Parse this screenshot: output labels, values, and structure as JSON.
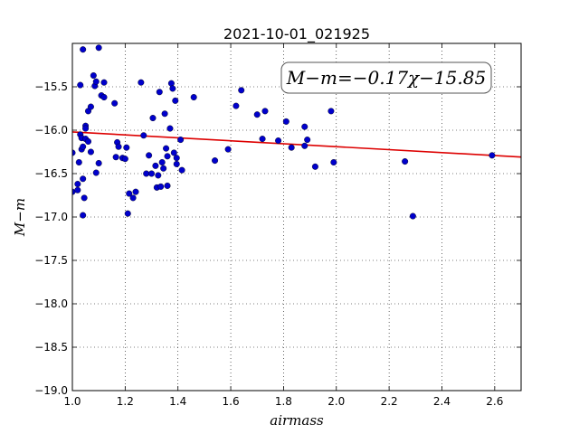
{
  "chart_data": {
    "type": "scatter",
    "title": "2021-10-01_021925",
    "xlabel": "airmass",
    "ylabel": "M−m",
    "xlim": [
      1.0,
      2.7
    ],
    "ylim": [
      -19.0,
      -15.0
    ],
    "x_ticks": [
      1.0,
      1.2,
      1.4,
      1.6,
      1.8,
      2.0,
      2.2,
      2.4,
      2.6
    ],
    "x_tick_labels": [
      "1.0",
      "1.2",
      "1.4",
      "1.6",
      "1.8",
      "2.0",
      "2.2",
      "2.4",
      "2.6"
    ],
    "y_ticks": [
      -15.5,
      -16.0,
      -16.5,
      -17.0,
      -17.5,
      -18.0,
      -18.5,
      -19.0
    ],
    "y_tick_labels": [
      "−15.5",
      "−16.0",
      "−16.5",
      "−17.0",
      "−17.5",
      "−18.0",
      "−18.5",
      "−19.0"
    ],
    "grid": true,
    "annotation": "M−m=−0.17χ−15.85",
    "fit": {
      "slope": -0.17,
      "intercept": -15.85,
      "color": "#dd0000"
    },
    "point_color": "#0000cc",
    "points": [
      [
        1.0,
        -16.26
      ],
      [
        1.0,
        -16.71
      ],
      [
        1.02,
        -16.62
      ],
      [
        1.02,
        -16.69
      ],
      [
        1.025,
        -16.37
      ],
      [
        1.03,
        -15.48
      ],
      [
        1.03,
        -16.05
      ],
      [
        1.035,
        -16.09
      ],
      [
        1.035,
        -16.22
      ],
      [
        1.04,
        -15.07
      ],
      [
        1.04,
        -16.98
      ],
      [
        1.04,
        -16.56
      ],
      [
        1.045,
        -16.78
      ],
      [
        1.04,
        -16.19
      ],
      [
        1.05,
        -16.1
      ],
      [
        1.05,
        -15.95
      ],
      [
        1.05,
        -15.98
      ],
      [
        1.06,
        -16.13
      ],
      [
        1.06,
        -15.78
      ],
      [
        1.07,
        -15.73
      ],
      [
        1.07,
        -16.25
      ],
      [
        1.08,
        -15.37
      ],
      [
        1.085,
        -15.49
      ],
      [
        1.09,
        -15.44
      ],
      [
        1.09,
        -16.49
      ],
      [
        1.1,
        -15.05
      ],
      [
        1.1,
        -16.38
      ],
      [
        1.11,
        -15.6
      ],
      [
        1.12,
        -15.62
      ],
      [
        1.12,
        -15.45
      ],
      [
        1.16,
        -15.69
      ],
      [
        1.165,
        -16.31
      ],
      [
        1.17,
        -16.14
      ],
      [
        1.175,
        -16.19
      ],
      [
        1.19,
        -16.32
      ],
      [
        1.2,
        -16.33
      ],
      [
        1.205,
        -16.2
      ],
      [
        1.21,
        -16.96
      ],
      [
        1.215,
        -16.73
      ],
      [
        1.23,
        -16.78
      ],
      [
        1.24,
        -16.71
      ],
      [
        1.26,
        -15.45
      ],
      [
        1.27,
        -16.06
      ],
      [
        1.28,
        -16.5
      ],
      [
        1.29,
        -16.29
      ],
      [
        1.3,
        -16.5
      ],
      [
        1.305,
        -15.86
      ],
      [
        1.315,
        -16.41
      ],
      [
        1.32,
        -16.66
      ],
      [
        1.325,
        -16.52
      ],
      [
        1.33,
        -15.56
      ],
      [
        1.335,
        -16.65
      ],
      [
        1.34,
        -16.37
      ],
      [
        1.345,
        -16.44
      ],
      [
        1.35,
        -15.81
      ],
      [
        1.355,
        -16.21
      ],
      [
        1.36,
        -16.3
      ],
      [
        1.36,
        -16.64
      ],
      [
        1.37,
        -15.98
      ],
      [
        1.375,
        -15.46
      ],
      [
        1.38,
        -15.52
      ],
      [
        1.385,
        -16.26
      ],
      [
        1.39,
        -15.66
      ],
      [
        1.395,
        -16.39
      ],
      [
        1.395,
        -16.32
      ],
      [
        1.41,
        -16.11
      ],
      [
        1.415,
        -16.46
      ],
      [
        1.46,
        -15.62
      ],
      [
        1.54,
        -16.35
      ],
      [
        1.59,
        -16.22
      ],
      [
        1.62,
        -15.72
      ],
      [
        1.64,
        -15.54
      ],
      [
        1.7,
        -15.82
      ],
      [
        1.72,
        -16.1
      ],
      [
        1.73,
        -15.78
      ],
      [
        1.78,
        -16.12
      ],
      [
        1.81,
        -15.9
      ],
      [
        1.83,
        -16.2
      ],
      [
        1.88,
        -15.96
      ],
      [
        1.88,
        -16.18
      ],
      [
        1.89,
        -16.11
      ],
      [
        1.92,
        -16.42
      ],
      [
        1.98,
        -15.78
      ],
      [
        1.99,
        -16.37
      ],
      [
        2.26,
        -16.36
      ],
      [
        2.29,
        -16.99
      ],
      [
        2.59,
        -16.29
      ]
    ]
  }
}
